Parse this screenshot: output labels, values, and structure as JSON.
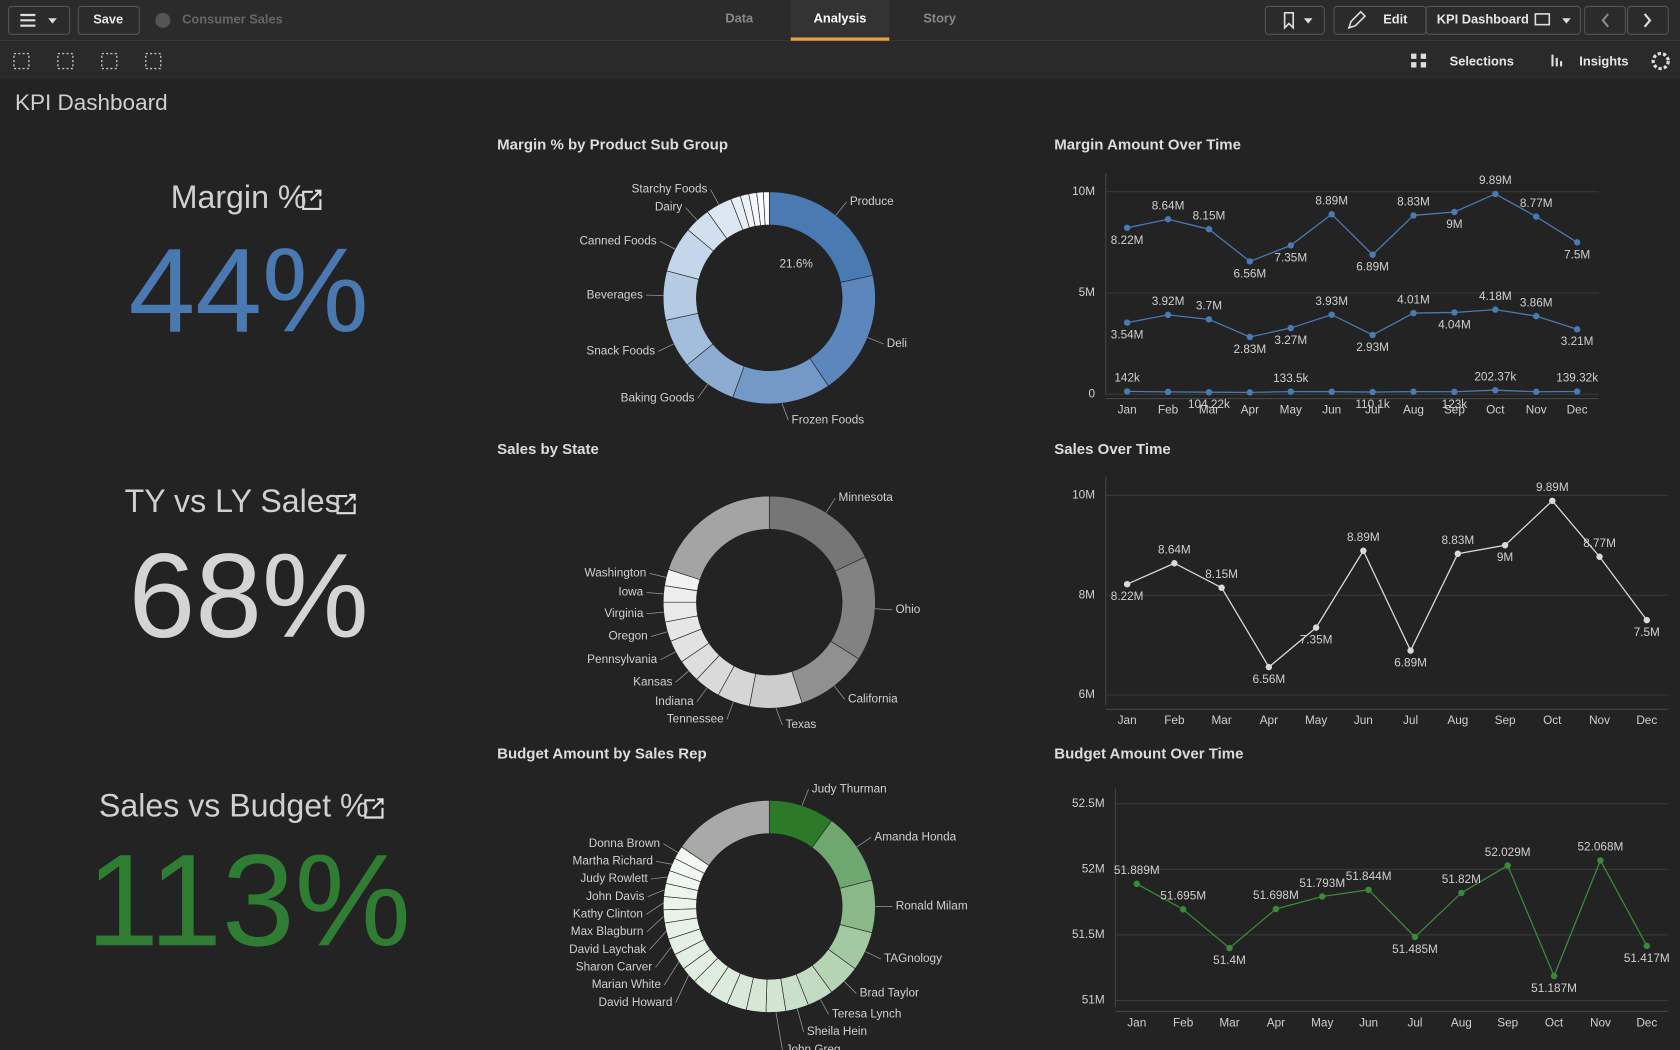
{
  "toolbar": {
    "save": "Save",
    "app_name": "Consumer Sales",
    "tabs": [
      "Data",
      "Analysis",
      "Story"
    ],
    "edit": "Edit",
    "sheet": "KPI Dashboard",
    "selections": "Selections",
    "insights": "Insights"
  },
  "sheet_title": "KPI Dashboard",
  "kpis": [
    {
      "title": "Margin %",
      "value": "44%",
      "color": "#4a78b0"
    },
    {
      "title": "TY vs LY Sales",
      "value": "68%",
      "color": "#d4d4d4"
    },
    {
      "title": "Sales vs Budget %",
      "value": "113%",
      "color": "#2e7d32"
    }
  ],
  "chart_data": [
    {
      "type": "donut",
      "title": "Margin % by Product Sub Group",
      "categories": [
        "Produce",
        "Deli",
        "Frozen Foods",
        "Baking Goods",
        "Snack Foods",
        "Beverages",
        "Canned Foods",
        "Dairy",
        "Starchy Foods",
        null,
        null,
        null,
        null,
        null
      ],
      "values": [
        21.6,
        19,
        15,
        8.5,
        7.5,
        7.5,
        7,
        4,
        4,
        1.5,
        1.3,
        1.2,
        1.0,
        0.9
      ],
      "value_labels": [
        "21.6%",
        null,
        null,
        null,
        null,
        null,
        null,
        null,
        null,
        null,
        null,
        null,
        null,
        null
      ],
      "colors": [
        "#4a7ab2",
        "#5b87bd",
        "#7399c8",
        "#8eacd2",
        "#a3bedb",
        "#b5cbe3",
        "#c4d6ea",
        "#d1dfef",
        "#dde7f3",
        "#e6eef7",
        "#eef3f9",
        "#f3f6fb",
        "#f8fafd",
        "#fbfcfe"
      ]
    },
    {
      "type": "line",
      "title": "Margin Amount Over Time",
      "categories": [
        "Jan",
        "Feb",
        "Mar",
        "Apr",
        "May",
        "Jun",
        "Jul",
        "Aug",
        "Sep",
        "Oct",
        "Nov",
        "Dec"
      ],
      "ylim": [
        0,
        10500000
      ],
      "yticks": [
        0,
        {
          "value": 5000000,
          "label": "5M"
        },
        {
          "value": 10000000,
          "label": "10M"
        }
      ],
      "grid": true,
      "series": [
        {
          "color": "#4a7ab2",
          "values": [
            8220000,
            8640000,
            8150000,
            6560000,
            7350000,
            8890000,
            6890000,
            8830000,
            9000000,
            9890000,
            8770000,
            7500000
          ],
          "value_labels": [
            "8.22M",
            "8.64M",
            "8.15M",
            "6.56M",
            "7.35M",
            "8.89M",
            "6.89M",
            "8.83M",
            "9M",
            "9.89M",
            "8.77M",
            "7.5M"
          ]
        },
        {
          "color": "#4a7ab2",
          "values": [
            3540000,
            3920000,
            3700000,
            2830000,
            3270000,
            3930000,
            2930000,
            4010000,
            4040000,
            4180000,
            3860000,
            3210000
          ],
          "value_labels": [
            "3.54M",
            "3.92M",
            "3.7M",
            "2.83M",
            "3.27M",
            "3.93M",
            "2.93M",
            "4.01M",
            "4.04M",
            "4.18M",
            "3.86M",
            "3.21M"
          ]
        },
        {
          "color": "#4a7ab2",
          "values": [
            142000,
            120000,
            104220,
            95000,
            133500,
            128000,
            110100,
            131000,
            123000,
            202370,
            125000,
            139320
          ],
          "value_labels": [
            "142k",
            null,
            "104.22k",
            null,
            "133.5k",
            null,
            "110.1k",
            null,
            "123k",
            "202.37k",
            null,
            "139.32k"
          ]
        }
      ]
    },
    {
      "type": "donut",
      "title": "Sales by State",
      "categories": [
        "Minnesota",
        "Ohio",
        "California",
        "Texas",
        "Tennessee",
        "Indiana",
        "Kansas",
        "Pennsylvania",
        "Oregon",
        "Virginia",
        "Iowa",
        "Washington",
        null
      ],
      "values": [
        18,
        16,
        11,
        8,
        5,
        4,
        3.5,
        3.5,
        3,
        3,
        2.5,
        2.5,
        20
      ],
      "colors": [
        "#767676",
        "#828282",
        "#909090",
        "#cdcdcd",
        "#d6d6d6",
        "#dadada",
        "#dedede",
        "#e2e2e2",
        "#e6e6e6",
        "#eaeaea",
        "#eeeeee",
        "#f2f2f2",
        "#a4a4a4"
      ]
    },
    {
      "type": "line",
      "title": "Sales Over Time",
      "categories": [
        "Jan",
        "Feb",
        "Mar",
        "Apr",
        "May",
        "Jun",
        "Jul",
        "Aug",
        "Sep",
        "Oct",
        "Nov",
        "Dec"
      ],
      "ylim": [
        5800000,
        10200000
      ],
      "yticks": [
        {
          "value": 6000000,
          "label": "6M"
        },
        {
          "value": 8000000,
          "label": "8M"
        },
        {
          "value": 10000000,
          "label": "10M"
        }
      ],
      "grid": true,
      "series": [
        {
          "color": "#d9d9d9",
          "values": [
            8220000,
            8640000,
            8150000,
            6560000,
            7350000,
            8890000,
            6890000,
            8830000,
            9000000,
            9890000,
            8770000,
            7500000
          ],
          "value_labels": [
            "8.22M",
            "8.64M",
            "8.15M",
            "6.56M",
            "7.35M",
            "8.89M",
            "6.89M",
            "8.83M",
            "9M",
            "9.89M",
            "8.77M",
            "7.5M"
          ]
        }
      ]
    },
    {
      "type": "donut",
      "title": "Budget Amount by Sales Rep",
      "categories": [
        "Judy Thurman",
        "Amanda Honda",
        "Ronald Milam",
        "TAGnology",
        "Brad Taylor",
        "Teresa Lynch",
        "Sheila Hein",
        "John Greg",
        null,
        null,
        null,
        null,
        "David Howard",
        "Marian White",
        "Sharon Carver",
        "David Laychak",
        "Max Blagburn",
        "Kathy Clinton",
        "John Davis",
        "Judy Rowlett",
        "Martha Richard",
        "Donna Brown",
        null
      ],
      "values": [
        10,
        11,
        8,
        6,
        5,
        4,
        3.5,
        3,
        3,
        3,
        3,
        3,
        2.5,
        2.5,
        2.5,
        2.5,
        2,
        2,
        2,
        2,
        2,
        2,
        15.5
      ],
      "colors": [
        "#2a7a2a",
        "#6fa86f",
        "#89b889",
        "#a3c9a3",
        "#b5d3b5",
        "#c2dbc2",
        "#cbe0cb",
        "#d2e5d2",
        "#d6e7d6",
        "#d9e9d9",
        "#dcebdc",
        "#dfeddf",
        "#e1eee1",
        "#e3efe3",
        "#e5f0e5",
        "#e7f2e7",
        "#e9f3e9",
        "#ebf4eb",
        "#edf5ed",
        "#eff6ef",
        "#f1f7f1",
        "#f3f8f3",
        "#a9a9a9"
      ]
    },
    {
      "type": "line",
      "title": "Budget Amount Over Time",
      "categories": [
        "Jan",
        "Feb",
        "Mar",
        "Apr",
        "May",
        "Jun",
        "Jul",
        "Aug",
        "Sep",
        "Oct",
        "Nov",
        "Dec"
      ],
      "ylim": [
        50950000,
        52550000
      ],
      "yticks": [
        {
          "value": 51000000,
          "label": "51M"
        },
        {
          "value": 51500000,
          "label": "51.5M"
        },
        {
          "value": 52000000,
          "label": "52M"
        },
        {
          "value": 52500000,
          "label": "52.5M"
        }
      ],
      "grid": true,
      "series": [
        {
          "color": "#3a8a3a",
          "values": [
            51889000,
            51695000,
            51400000,
            51698000,
            51793000,
            51844000,
            51485000,
            51820000,
            52029000,
            51187000,
            52068000,
            51417000
          ],
          "value_labels": [
            "51.889M",
            "51.695M",
            "51.4M",
            "51.698M",
            "51.793M",
            "51.844M",
            "51.485M",
            "51.82M",
            "52.029M",
            "51.187M",
            "52.068M",
            "51.417M"
          ]
        }
      ]
    }
  ]
}
